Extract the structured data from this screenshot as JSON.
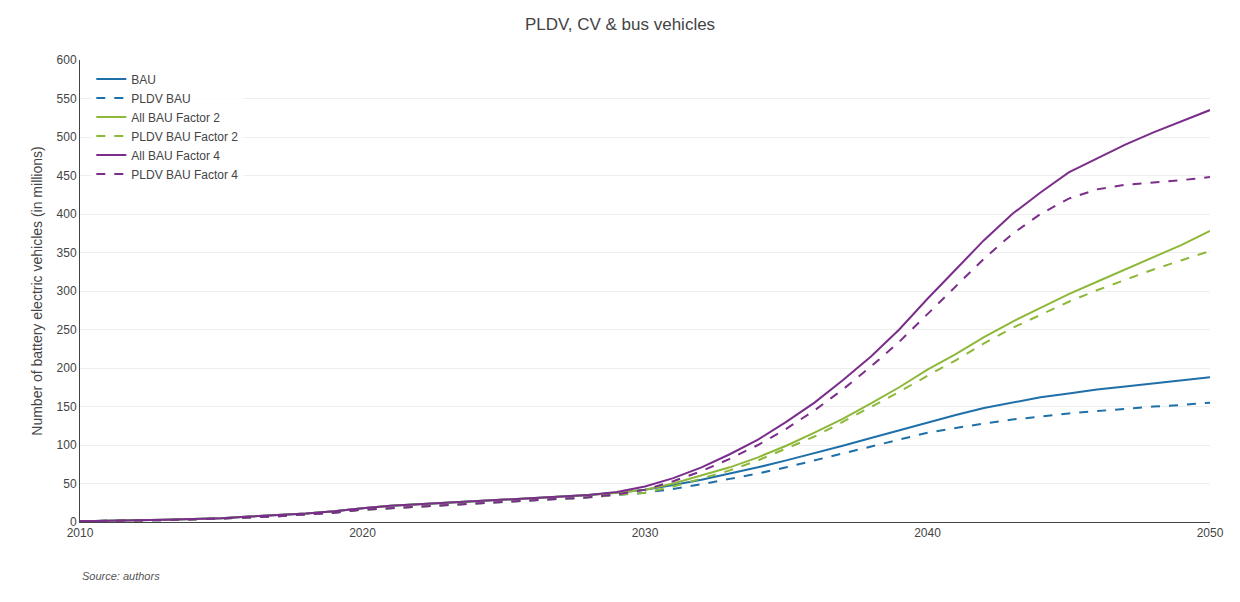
{
  "chart_data": {
    "type": "line",
    "title": "PLDV, CV & bus vehicles",
    "ylabel": "Number of battery electric vehicles (in millions)",
    "annotations": [
      "Source: authors"
    ],
    "x": [
      2010,
      2011,
      2012,
      2013,
      2014,
      2015,
      2016,
      2017,
      2018,
      2019,
      2020,
      2021,
      2022,
      2023,
      2024,
      2025,
      2026,
      2027,
      2028,
      2029,
      2030,
      2031,
      2032,
      2033,
      2034,
      2035,
      2036,
      2037,
      2038,
      2039,
      2040,
      2041,
      2042,
      2043,
      2044,
      2045,
      2046,
      2047,
      2048,
      2049,
      2050
    ],
    "xlim": [
      2010,
      2050
    ],
    "xticks": [
      2010,
      2020,
      2030,
      2040,
      2050
    ],
    "ylim": [
      0,
      600
    ],
    "yticks": [
      0,
      50,
      100,
      150,
      200,
      250,
      300,
      350,
      400,
      450,
      500,
      550,
      600
    ],
    "grid": "y",
    "legend": "upper left",
    "series": [
      {
        "name": "BAU",
        "color": "#1f6fa8",
        "line_style": "solid",
        "values": [
          1,
          1.5,
          2,
          3,
          4,
          5,
          7,
          9,
          11,
          14,
          18,
          21,
          23,
          25,
          27,
          29,
          31,
          33,
          35,
          38,
          42,
          48,
          55,
          63,
          71,
          80,
          89,
          99,
          109,
          119,
          130,
          139,
          148,
          155,
          162,
          167,
          172,
          176,
          180,
          184,
          188
        ]
      },
      {
        "name": "PLDV BAU",
        "color": "#1f6fa8",
        "line_style": "dashed",
        "values": [
          1,
          1.3,
          1.8,
          2.5,
          3.3,
          4.3,
          5.8,
          7.5,
          9.5,
          12,
          16,
          18,
          20,
          22,
          24,
          26,
          28,
          30,
          32,
          35,
          38,
          43,
          49,
          56,
          63,
          71,
          80,
          89,
          98,
          107,
          116,
          122,
          128,
          133,
          137,
          141,
          144,
          147,
          150,
          152,
          155
        ]
      },
      {
        "name": "All BAU Factor 2",
        "color": "#8db83a",
        "line_style": "solid",
        "values": [
          1,
          1.5,
          2,
          3,
          4,
          5,
          7,
          9,
          11,
          14,
          18,
          21,
          23,
          25,
          27,
          29,
          31,
          33,
          35,
          38,
          42,
          50,
          60,
          71,
          84,
          99,
          116,
          134,
          154,
          175,
          198,
          218,
          240,
          260,
          278,
          296,
          312,
          328,
          343,
          360,
          378
        ]
      },
      {
        "name": "PLDV BAU Factor 2",
        "color": "#8db83a",
        "line_style": "dashed",
        "values": [
          1,
          1.3,
          1.8,
          2.5,
          3.3,
          4.3,
          5.8,
          7.5,
          9.5,
          12,
          16,
          18,
          20,
          22,
          24,
          26,
          28,
          30,
          32,
          35,
          38,
          46,
          56,
          67,
          80,
          95,
          111,
          130,
          149,
          169,
          190,
          210,
          232,
          252,
          269,
          286,
          301,
          315,
          328,
          340,
          352
        ]
      },
      {
        "name": "All BAU Factor 4",
        "color": "#7b2d8b",
        "line_style": "solid",
        "values": [
          1,
          1.5,
          2,
          3,
          4,
          5,
          7,
          9,
          11,
          14,
          18,
          21,
          23,
          25,
          27,
          29,
          31,
          33,
          35,
          39,
          46,
          57,
          71,
          88,
          107,
          130,
          155,
          184,
          215,
          250,
          290,
          328,
          366,
          400,
          428,
          454,
          472,
          490,
          506,
          521,
          535
        ]
      },
      {
        "name": "PLDV BAU Factor 4",
        "color": "#7b2d8b",
        "line_style": "dashed",
        "values": [
          1,
          1.3,
          1.8,
          2.5,
          3.3,
          4.3,
          5.8,
          7.5,
          9.5,
          12,
          16,
          18,
          20,
          22,
          24,
          26,
          28,
          30,
          32,
          36,
          42,
          53,
          66,
          82,
          100,
          121,
          145,
          172,
          202,
          234,
          270,
          306,
          342,
          374,
          400,
          420,
          432,
          438,
          441,
          444,
          448
        ]
      }
    ]
  }
}
